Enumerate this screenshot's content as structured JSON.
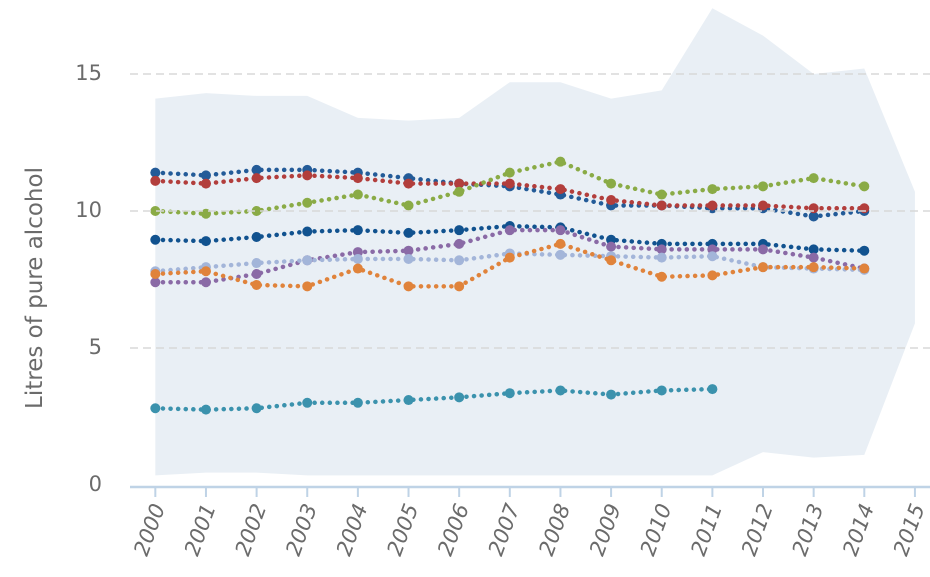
{
  "chart_data": {
    "type": "line",
    "ylabel": "Litres of pure alcohol",
    "x": [
      2000,
      2001,
      2002,
      2003,
      2004,
      2005,
      2006,
      2007,
      2008,
      2009,
      2010,
      2011,
      2012,
      2013,
      2014,
      2015
    ],
    "xlim": [
      1999.5,
      2015.1
    ],
    "xticks": [
      2000,
      2001,
      2002,
      2003,
      2004,
      2005,
      2006,
      2007,
      2008,
      2009,
      2010,
      2011,
      2012,
      2013,
      2014,
      2015
    ],
    "ylim": [
      0,
      17.7
    ],
    "yticks": [
      0,
      5,
      10,
      15
    ],
    "grid": true,
    "band": {
      "color": "#e9eff5",
      "upper": [
        14.1,
        14.3,
        14.2,
        14.2,
        13.4,
        13.3,
        13.4,
        14.7,
        14.7,
        14.1,
        14.4,
        17.4,
        16.4,
        15.0,
        15.2,
        10.7
      ],
      "lower": [
        0.35,
        0.45,
        0.45,
        0.35,
        0.35,
        0.35,
        0.35,
        0.35,
        0.35,
        0.35,
        0.35,
        0.35,
        1.2,
        1.0,
        1.1,
        5.9
      ]
    },
    "series": [
      {
        "color": "#235b98",
        "values": [
          11.4,
          11.3,
          11.5,
          11.5,
          11.4,
          11.2,
          11.0,
          10.9,
          10.6,
          10.2,
          10.2,
          10.1,
          10.1,
          9.8,
          10.0,
          null
        ]
      },
      {
        "color": "#b23e3c",
        "values": [
          11.1,
          11.0,
          11.2,
          11.3,
          11.2,
          11.0,
          11.0,
          11.0,
          10.8,
          10.4,
          10.2,
          10.2,
          10.2,
          10.1,
          10.1,
          null
        ]
      },
      {
        "color": "#8aab46",
        "values": [
          10.0,
          9.9,
          10.0,
          10.3,
          10.6,
          10.2,
          10.7,
          11.4,
          11.8,
          11.0,
          10.6,
          10.8,
          10.9,
          11.2,
          10.9,
          null
        ]
      },
      {
        "color": "#11528f",
        "values": [
          8.95,
          8.9,
          9.05,
          9.25,
          9.3,
          9.2,
          9.3,
          9.45,
          9.4,
          8.95,
          8.8,
          8.8,
          8.8,
          8.6,
          8.55,
          null
        ]
      },
      {
        "color": "#8a6aa6",
        "values": [
          7.4,
          7.4,
          7.7,
          8.2,
          8.5,
          8.55,
          8.8,
          9.3,
          9.3,
          8.7,
          8.6,
          8.6,
          8.6,
          8.3,
          7.9,
          null
        ]
      },
      {
        "color": "#a3b5d9",
        "values": [
          7.8,
          7.95,
          8.1,
          8.2,
          8.25,
          8.25,
          8.2,
          8.45,
          8.4,
          8.35,
          8.3,
          8.35,
          7.95,
          7.9,
          7.85,
          null
        ]
      },
      {
        "color": "#e0833b",
        "values": [
          7.7,
          7.8,
          7.3,
          7.25,
          7.9,
          7.25,
          7.25,
          8.3,
          8.8,
          8.2,
          7.6,
          7.65,
          7.95,
          7.95,
          7.9,
          null
        ]
      },
      {
        "color": "#3b92ad",
        "values": [
          2.8,
          2.75,
          2.8,
          3.0,
          3.0,
          3.1,
          3.2,
          3.35,
          3.45,
          3.3,
          3.45,
          3.5,
          null,
          null,
          null,
          null
        ]
      }
    ]
  }
}
